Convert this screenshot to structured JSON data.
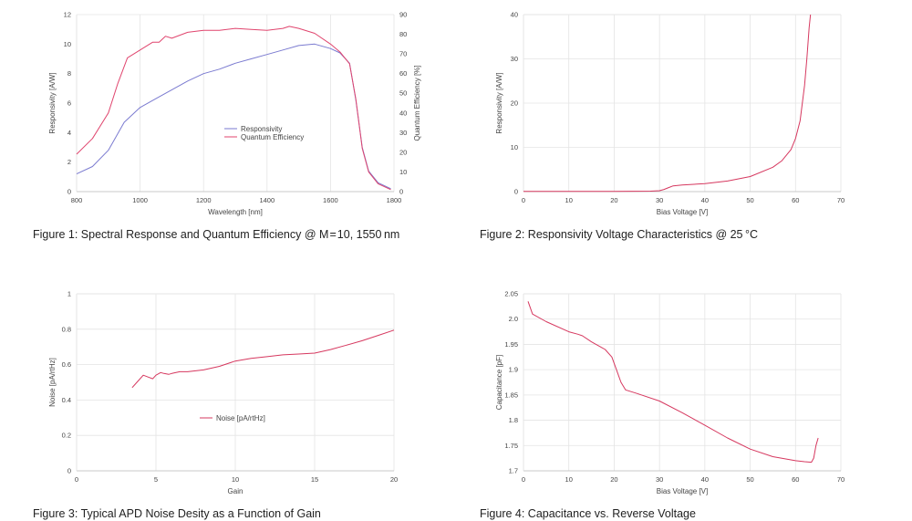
{
  "colors": {
    "responsivity": "#7a7ad0",
    "qe": "#e0456e",
    "single": "#d6385f",
    "grid": "#e4e4e4",
    "axis": "#c8c8c8"
  },
  "captions": {
    "fig1": "Figure 1: Spectral Response and Quantum Efficiency @ M = 10, 1550 nm",
    "fig2": "Figure 2: Responsivity Voltage Characteristics @ 25 °C",
    "fig3": "Figure 3: Typical APD Noise Desity as a Function of Gain",
    "fig4": "Figure 4: Capacitance vs. Reverse Voltage"
  },
  "chart_data": [
    {
      "id": "fig1",
      "type": "line",
      "title": "Figure 1: Spectral Response and Quantum Efficiency @ M = 10, 1550 nm",
      "xlabel": "Wavelength [nm]",
      "ylabel": "Responsivity [A/W]",
      "y2label": "Quantum Efficiency [%]",
      "xlim": [
        800,
        1800
      ],
      "ylim": [
        0,
        12
      ],
      "y2lim": [
        0,
        90
      ],
      "xticks": [
        800,
        1000,
        1200,
        1400,
        1600,
        1800
      ],
      "yticks": [
        0,
        2,
        4,
        6,
        8,
        10,
        12
      ],
      "y2ticks": [
        0,
        10,
        20,
        30,
        40,
        50,
        60,
        70,
        80,
        90
      ],
      "grid": "vertical",
      "legend_position": "center",
      "series": [
        {
          "name": "Responsivity",
          "axis": "left",
          "color": "#7a7ad0",
          "x": [
            800,
            850,
            900,
            950,
            1000,
            1050,
            1100,
            1150,
            1200,
            1250,
            1300,
            1350,
            1400,
            1450,
            1500,
            1550,
            1600,
            1630,
            1660,
            1680,
            1700,
            1720,
            1750,
            1790
          ],
          "y": [
            1.2,
            1.7,
            2.8,
            4.7,
            5.7,
            6.3,
            6.9,
            7.5,
            8.0,
            8.3,
            8.7,
            9.0,
            9.3,
            9.6,
            9.9,
            10.0,
            9.7,
            9.4,
            8.7,
            6.2,
            3.0,
            1.4,
            0.6,
            0.2
          ]
        },
        {
          "name": "Quantum Efficiency",
          "axis": "right",
          "color": "#e0456e",
          "x": [
            800,
            850,
            900,
            930,
            960,
            1000,
            1040,
            1060,
            1080,
            1100,
            1150,
            1200,
            1250,
            1300,
            1350,
            1400,
            1450,
            1470,
            1500,
            1550,
            1600,
            1630,
            1660,
            1680,
            1700,
            1720,
            1750,
            1790
          ],
          "y": [
            19,
            27,
            40,
            55,
            68,
            72,
            76,
            76,
            79,
            78,
            81,
            82,
            82,
            83,
            82.5,
            82,
            83,
            84,
            83,
            80.5,
            75,
            71,
            65,
            47,
            22,
            10,
            4,
            1
          ]
        }
      ]
    },
    {
      "id": "fig2",
      "type": "line",
      "title": "Figure 2: Responsivity Voltage Characteristics @ 25 °C",
      "xlabel": "Bias Voltage [V]",
      "ylabel": "Responsivity [A/W]",
      "xlim": [
        0,
        70
      ],
      "ylim": [
        0,
        40
      ],
      "xticks": [
        0,
        10,
        20,
        30,
        40,
        50,
        60,
        70
      ],
      "yticks": [
        0,
        10,
        20,
        30,
        40
      ],
      "grid": "both",
      "series": [
        {
          "name": "Responsivity",
          "color": "#d6385f",
          "x": [
            0,
            10,
            20,
            28,
            30,
            31,
            32,
            33,
            35,
            40,
            45,
            50,
            55,
            57,
            59,
            60,
            61,
            62,
            62.5,
            63,
            63.3
          ],
          "y": [
            0.05,
            0.05,
            0.05,
            0.1,
            0.2,
            0.5,
            0.9,
            1.3,
            1.5,
            1.8,
            2.4,
            3.4,
            5.5,
            7.0,
            9.5,
            12,
            16,
            24,
            30,
            37,
            40
          ]
        }
      ]
    },
    {
      "id": "fig3",
      "type": "line",
      "title": "Figure 3: Typical APD Noise Desity as a Function of Gain",
      "xlabel": "Gain",
      "ylabel": "Noise [pA/rtHz]",
      "xlim": [
        0,
        20
      ],
      "ylim": [
        0,
        1.0
      ],
      "xticks": [
        0,
        5,
        10,
        15,
        20
      ],
      "yticks": [
        0,
        0.2,
        0.4,
        0.6,
        0.8,
        1.0
      ],
      "grid": "both",
      "legend_position": "center",
      "series": [
        {
          "name": "Noise [pA/rtHz]",
          "color": "#d6385f",
          "x": [
            3.5,
            3.8,
            4.2,
            4.5,
            4.8,
            5.0,
            5.3,
            5.5,
            5.8,
            6.0,
            6.5,
            7.0,
            8.0,
            9.0,
            10.0,
            11.0,
            12.0,
            13.0,
            14.0,
            15.0,
            16.0,
            17.0,
            18.0,
            19.0,
            20.0
          ],
          "y": [
            0.47,
            0.5,
            0.54,
            0.53,
            0.52,
            0.54,
            0.555,
            0.55,
            0.545,
            0.55,
            0.56,
            0.56,
            0.57,
            0.59,
            0.62,
            0.635,
            0.645,
            0.655,
            0.66,
            0.665,
            0.685,
            0.71,
            0.735,
            0.765,
            0.795
          ]
        }
      ]
    },
    {
      "id": "fig4",
      "type": "line",
      "title": "Figure 4: Capacitance vs. Reverse Voltage",
      "xlabel": "Bias Voltage [V]",
      "ylabel": "Capacitance [pF]",
      "xlim": [
        0,
        70
      ],
      "ylim": [
        1.7,
        2.05
      ],
      "xticks": [
        0,
        10,
        20,
        30,
        40,
        50,
        60,
        70
      ],
      "yticks": [
        1.7,
        1.75,
        1.8,
        1.85,
        1.9,
        1.95,
        2.0,
        2.05
      ],
      "ytick_labels": [
        "1.7",
        "1.75",
        "1.8",
        "1.85",
        "1.9",
        "1.95",
        "2.0",
        "2.05"
      ],
      "grid": "both",
      "series": [
        {
          "name": "Capacitance",
          "color": "#d6385f",
          "x": [
            1,
            2,
            5,
            10,
            12,
            13,
            15,
            18,
            19.5,
            20.5,
            21.5,
            22.5,
            25,
            30,
            35,
            40,
            45,
            50,
            55,
            60,
            62,
            63.5,
            64,
            64.5,
            65
          ],
          "y": [
            2.035,
            2.01,
            1.995,
            1.975,
            1.97,
            1.967,
            1.955,
            1.94,
            1.925,
            1.9,
            1.875,
            1.86,
            1.853,
            1.838,
            1.815,
            1.79,
            1.765,
            1.743,
            1.728,
            1.72,
            1.718,
            1.717,
            1.725,
            1.75,
            1.765
          ]
        }
      ]
    }
  ]
}
